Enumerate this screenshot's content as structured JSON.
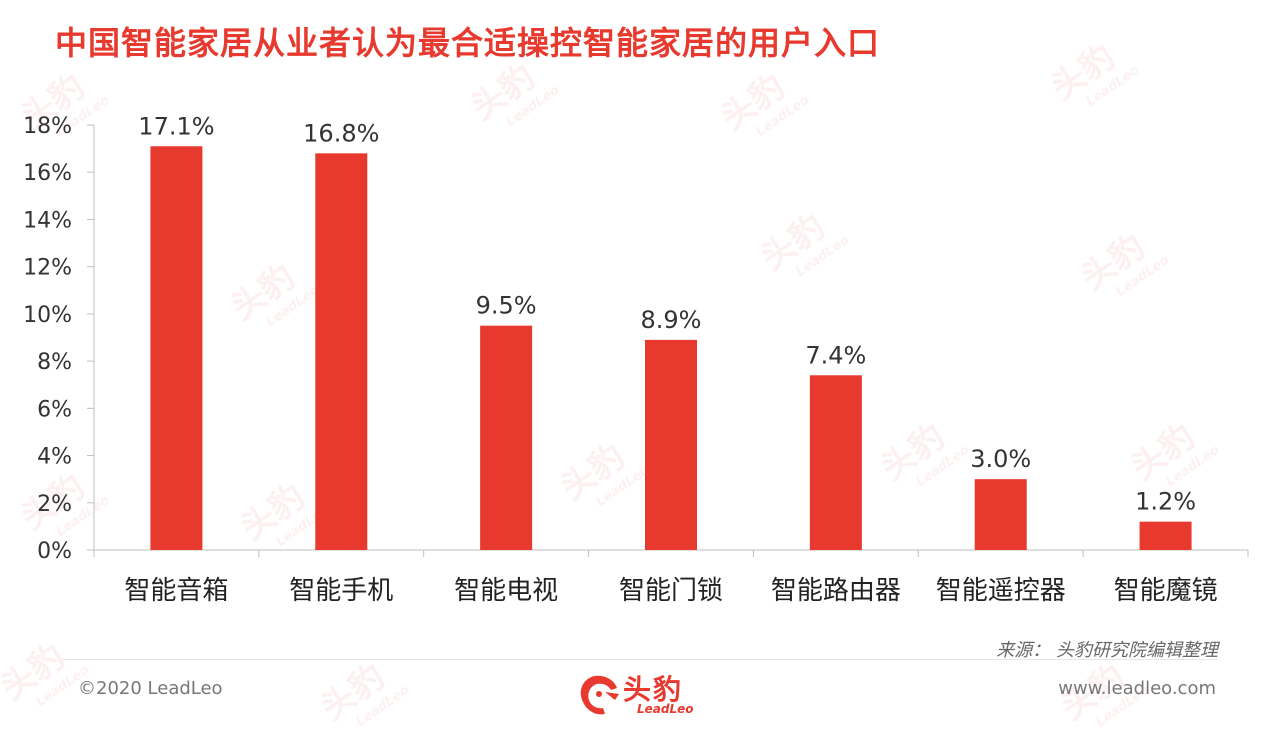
{
  "title": "中国智能家居从业者认为最合适操控智能家居的用户入口",
  "source": "来源：  头豹研究院编辑整理",
  "footer": {
    "copyright": "©2020 LeadLeo",
    "website": "www.leadleo.com",
    "logo_text": "头豹",
    "logo_sub": "LeadLeo"
  },
  "watermark": {
    "text": "头豹",
    "sub": "LeadLeo"
  },
  "colors": {
    "bar": "#e8392e",
    "title": "#e8392e",
    "axis": "#bfbfbf"
  },
  "chart_data": {
    "type": "bar",
    "title": "中国智能家居从业者认为最合适操控智能家居的用户入口",
    "categories": [
      "智能音箱",
      "智能手机",
      "智能电视",
      "智能门锁",
      "智能路由器",
      "智能遥控器",
      "智能魔镜"
    ],
    "values": [
      17.1,
      16.8,
      9.5,
      8.9,
      7.4,
      3.0,
      1.2
    ],
    "data_labels": [
      "17.1%",
      "16.8%",
      "9.5%",
      "8.9%",
      "7.4%",
      "3.0%",
      "1.2%"
    ],
    "ylim": [
      0,
      18
    ],
    "yticks": [
      0,
      2,
      4,
      6,
      8,
      10,
      12,
      14,
      16,
      18
    ],
    "ytick_labels": [
      "0%",
      "2%",
      "4%",
      "6%",
      "8%",
      "10%",
      "12%",
      "14%",
      "16%",
      "18%"
    ],
    "xlabel": "",
    "ylabel": "",
    "grid": false,
    "legend": "none"
  }
}
